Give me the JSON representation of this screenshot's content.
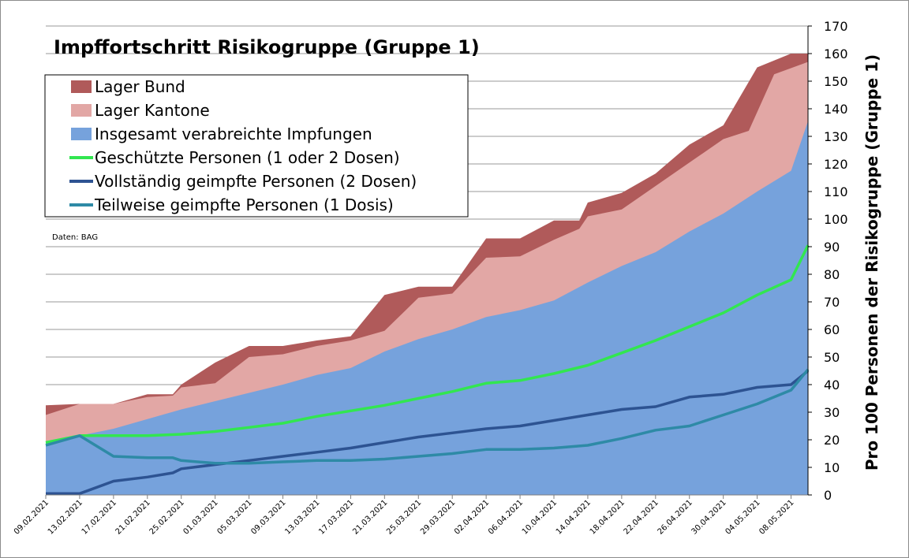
{
  "chart_data": {
    "type": "area",
    "title": "Impffortschritt Risikogruppe (Gruppe 1)",
    "source_note": "Daten: BAG",
    "ylabel": "Pro 100 Personen der Risikogruppe (Gruppe 1)",
    "ylim": [
      0,
      170
    ],
    "y_ticks": [
      0,
      10,
      20,
      30,
      40,
      50,
      60,
      70,
      80,
      90,
      100,
      110,
      120,
      130,
      140,
      150,
      160,
      170
    ],
    "y_axis_position": "right",
    "grid": true,
    "legend_position": "top-left",
    "x_tick_labels": [
      "09.02.2021",
      "13.02.2021",
      "17.02.2021",
      "21.02.2021",
      "25.02.2021",
      "01.03.2021",
      "05.03.2021",
      "09.03.2021",
      "13.03.2021",
      "17.03.2021",
      "21.03.2021",
      "25.03.2021",
      "29.03.2021",
      "02.04.2021",
      "06.04.2021",
      "10.04.2021",
      "14.04.2021",
      "18.04.2021",
      "22.04.2021",
      "26.04.2021",
      "30.04.2021",
      "04.05.2021",
      "08.05.2021"
    ],
    "x_start": "09.02.2021",
    "x_end": "10.05.2021",
    "series": [
      {
        "name": "Lager Bund",
        "kind": "area",
        "color": "#b05a5a",
        "points": [
          [
            "09.02.2021",
            32.5
          ],
          [
            "13.02.2021",
            33
          ],
          [
            "17.02.2021",
            33
          ],
          [
            "21.02.2021",
            36.5
          ],
          [
            "24.02.2021",
            36.5
          ],
          [
            "25.02.2021",
            40
          ],
          [
            "01.03.2021",
            48
          ],
          [
            "05.03.2021",
            54
          ],
          [
            "09.03.2021",
            54
          ],
          [
            "13.03.2021",
            56
          ],
          [
            "17.03.2021",
            57.5
          ],
          [
            "21.03.2021",
            72.5
          ],
          [
            "25.03.2021",
            75.5
          ],
          [
            "29.03.2021",
            75.5
          ],
          [
            "02.04.2021",
            93
          ],
          [
            "06.04.2021",
            93
          ],
          [
            "10.04.2021",
            99.5
          ],
          [
            "13.04.2021",
            99.5
          ],
          [
            "14.04.2021",
            106
          ],
          [
            "18.04.2021",
            109.5
          ],
          [
            "22.04.2021",
            116.5
          ],
          [
            "26.04.2021",
            127
          ],
          [
            "30.04.2021",
            134
          ],
          [
            "04.05.2021",
            155
          ],
          [
            "08.05.2021",
            160
          ],
          [
            "10.05.2021",
            160
          ]
        ]
      },
      {
        "name": "Lager Kantone",
        "kind": "area",
        "color": "#e2a7a5",
        "points": [
          [
            "09.02.2021",
            29
          ],
          [
            "13.02.2021",
            33
          ],
          [
            "17.02.2021",
            33
          ],
          [
            "21.02.2021",
            35.5
          ],
          [
            "24.02.2021",
            36
          ],
          [
            "25.02.2021",
            39
          ],
          [
            "01.03.2021",
            40.5
          ],
          [
            "05.03.2021",
            50
          ],
          [
            "09.03.2021",
            51
          ],
          [
            "13.03.2021",
            54
          ],
          [
            "17.03.2021",
            56
          ],
          [
            "21.03.2021",
            59.5
          ],
          [
            "25.03.2021",
            71.5
          ],
          [
            "29.03.2021",
            73
          ],
          [
            "02.04.2021",
            86
          ],
          [
            "06.04.2021",
            86.5
          ],
          [
            "10.04.2021",
            92.5
          ],
          [
            "13.04.2021",
            96.5
          ],
          [
            "14.04.2021",
            101
          ],
          [
            "18.04.2021",
            103.5
          ],
          [
            "22.04.2021",
            112
          ],
          [
            "26.04.2021",
            120.5
          ],
          [
            "30.04.2021",
            129
          ],
          [
            "03.05.2021",
            132
          ],
          [
            "06.05.2021",
            152.5
          ],
          [
            "10.05.2021",
            157
          ]
        ]
      },
      {
        "name": "Insgesamt verabreichte Impfungen",
        "kind": "area",
        "color": "#76a2dc",
        "points": [
          [
            "09.02.2021",
            19
          ],
          [
            "13.02.2021",
            21.5
          ],
          [
            "17.02.2021",
            24
          ],
          [
            "21.02.2021",
            27.5
          ],
          [
            "25.02.2021",
            31
          ],
          [
            "01.03.2021",
            34
          ],
          [
            "05.03.2021",
            37
          ],
          [
            "09.03.2021",
            40
          ],
          [
            "13.03.2021",
            43.5
          ],
          [
            "17.03.2021",
            46
          ],
          [
            "21.03.2021",
            52
          ],
          [
            "25.03.2021",
            56.5
          ],
          [
            "29.03.2021",
            60
          ],
          [
            "02.04.2021",
            64.5
          ],
          [
            "06.04.2021",
            67
          ],
          [
            "10.04.2021",
            70.5
          ],
          [
            "14.04.2021",
            77
          ],
          [
            "18.04.2021",
            83
          ],
          [
            "22.04.2021",
            88
          ],
          [
            "26.04.2021",
            95.5
          ],
          [
            "30.04.2021",
            102
          ],
          [
            "04.05.2021",
            110
          ],
          [
            "08.05.2021",
            117.5
          ],
          [
            "10.05.2021",
            135.5
          ]
        ]
      },
      {
        "name": "Geschützte Personen (1 oder 2 Dosen)",
        "kind": "line",
        "color": "#32e650",
        "points": [
          [
            "09.02.2021",
            19
          ],
          [
            "13.02.2021",
            21.5
          ],
          [
            "17.02.2021",
            21.5
          ],
          [
            "21.02.2021",
            21.5
          ],
          [
            "25.02.2021",
            22
          ],
          [
            "01.03.2021",
            23
          ],
          [
            "05.03.2021",
            24.5
          ],
          [
            "09.03.2021",
            26
          ],
          [
            "13.03.2021",
            28.5
          ],
          [
            "17.03.2021",
            30.5
          ],
          [
            "21.03.2021",
            32.5
          ],
          [
            "25.03.2021",
            35
          ],
          [
            "29.03.2021",
            37.5
          ],
          [
            "02.04.2021",
            40.5
          ],
          [
            "06.04.2021",
            41.5
          ],
          [
            "10.04.2021",
            44
          ],
          [
            "14.04.2021",
            47
          ],
          [
            "18.04.2021",
            51.5
          ],
          [
            "22.04.2021",
            56
          ],
          [
            "26.04.2021",
            61
          ],
          [
            "30.04.2021",
            66
          ],
          [
            "04.05.2021",
            72.5
          ],
          [
            "08.05.2021",
            78
          ],
          [
            "10.05.2021",
            90.5
          ]
        ]
      },
      {
        "name": "Vollständig geimpfte Personen (2 Dosen)",
        "kind": "line",
        "color": "#2d5392",
        "points": [
          [
            "09.02.2021",
            0.5
          ],
          [
            "13.02.2021",
            0.5
          ],
          [
            "17.02.2021",
            5
          ],
          [
            "21.02.2021",
            6.5
          ],
          [
            "24.02.2021",
            8
          ],
          [
            "25.02.2021",
            9.5
          ],
          [
            "01.03.2021",
            11
          ],
          [
            "05.03.2021",
            12.5
          ],
          [
            "09.03.2021",
            14
          ],
          [
            "13.03.2021",
            15.5
          ],
          [
            "17.03.2021",
            17
          ],
          [
            "21.03.2021",
            19
          ],
          [
            "25.03.2021",
            21
          ],
          [
            "29.03.2021",
            22.5
          ],
          [
            "02.04.2021",
            24
          ],
          [
            "06.04.2021",
            25
          ],
          [
            "10.04.2021",
            27
          ],
          [
            "14.04.2021",
            29
          ],
          [
            "18.04.2021",
            31
          ],
          [
            "22.04.2021",
            32
          ],
          [
            "26.04.2021",
            35.5
          ],
          [
            "30.04.2021",
            36.5
          ],
          [
            "04.05.2021",
            39
          ],
          [
            "08.05.2021",
            40
          ],
          [
            "10.05.2021",
            45
          ]
        ]
      },
      {
        "name": "Teilweise geimpfte Personen (1 Dosis)",
        "kind": "line",
        "color": "#2e8aa6",
        "points": [
          [
            "09.02.2021",
            18
          ],
          [
            "13.02.2021",
            21.5
          ],
          [
            "17.02.2021",
            14
          ],
          [
            "21.02.2021",
            13.5
          ],
          [
            "24.02.2021",
            13.5
          ],
          [
            "25.02.2021",
            12.5
          ],
          [
            "01.03.2021",
            11.5
          ],
          [
            "05.03.2021",
            11.5
          ],
          [
            "09.03.2021",
            12
          ],
          [
            "13.03.2021",
            12.5
          ],
          [
            "17.03.2021",
            12.5
          ],
          [
            "21.03.2021",
            13
          ],
          [
            "25.03.2021",
            14
          ],
          [
            "29.03.2021",
            15
          ],
          [
            "02.04.2021",
            16.5
          ],
          [
            "06.04.2021",
            16.5
          ],
          [
            "10.04.2021",
            17
          ],
          [
            "14.04.2021",
            18
          ],
          [
            "18.04.2021",
            20.5
          ],
          [
            "22.04.2021",
            23.5
          ],
          [
            "26.04.2021",
            25
          ],
          [
            "30.04.2021",
            29
          ],
          [
            "04.05.2021",
            33
          ],
          [
            "08.05.2021",
            38
          ],
          [
            "10.05.2021",
            45.5
          ]
        ]
      }
    ]
  }
}
